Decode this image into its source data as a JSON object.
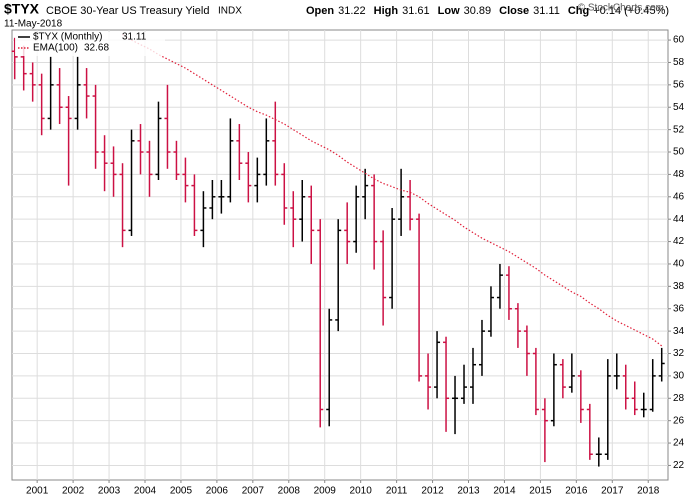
{
  "chart_data": {
    "type": "ohlc",
    "title": "$TYX",
    "subtitle": "CBOE 30-Year US Treasury Yield",
    "exchange": "INDX",
    "date": "11-May-2018",
    "quote": [
      {
        "label": "Open",
        "value": "31.22"
      },
      {
        "label": "High",
        "value": "31.61"
      },
      {
        "label": "Low",
        "value": "30.89"
      },
      {
        "label": "Close",
        "value": "31.11"
      },
      {
        "label": "Chg",
        "value": "+0.14 (+0.45%)"
      }
    ],
    "watermark": "© StockCharts.com",
    "up_color": "#000000",
    "down_color": "#cc1144",
    "grid": true,
    "xlim": [
      2000.3,
      2018.55
    ],
    "xticks": [
      2001,
      2002,
      2003,
      2004,
      2005,
      2006,
      2007,
      2008,
      2009,
      2010,
      2011,
      2012,
      2013,
      2014,
      2015,
      2016,
      2017,
      2018
    ],
    "ylim": [
      20.7,
      60.9
    ],
    "yticks": [
      22,
      24,
      26,
      28,
      30,
      32,
      34,
      36,
      38,
      40,
      42,
      44,
      46,
      48,
      50,
      52,
      54,
      56,
      58,
      60
    ],
    "x": [
      2000.375,
      2000.625,
      2000.875,
      2001.125,
      2001.375,
      2001.625,
      2001.875,
      2002.125,
      2002.375,
      2002.625,
      2002.875,
      2003.125,
      2003.375,
      2003.625,
      2003.875,
      2004.125,
      2004.375,
      2004.625,
      2004.875,
      2005.125,
      2005.375,
      2005.625,
      2005.875,
      2006.125,
      2006.375,
      2006.625,
      2006.875,
      2007.125,
      2007.375,
      2007.625,
      2007.875,
      2008.125,
      2008.375,
      2008.625,
      2008.875,
      2009.125,
      2009.375,
      2009.625,
      2009.875,
      2010.125,
      2010.375,
      2010.625,
      2010.875,
      2011.125,
      2011.375,
      2011.625,
      2011.875,
      2012.125,
      2012.375,
      2012.625,
      2012.875,
      2013.125,
      2013.375,
      2013.625,
      2013.875,
      2014.125,
      2014.375,
      2014.625,
      2014.875,
      2015.125,
      2015.375,
      2015.625,
      2015.875,
      2016.125,
      2016.375,
      2016.625,
      2016.875,
      2017.125,
      2017.375,
      2017.625,
      2017.875,
      2018.125,
      2018.375
    ],
    "price": {
      "name": "$TYX (Monthly)",
      "last": "31.11",
      "open": [
        59,
        58.5,
        57,
        56,
        53,
        56,
        54,
        53,
        56,
        55,
        50,
        49,
        48,
        43,
        51,
        50,
        48,
        53,
        50,
        48,
        47,
        43,
        45,
        46,
        46,
        51,
        49,
        47,
        48,
        51,
        48,
        45,
        44,
        46,
        43,
        27,
        35,
        43,
        42,
        46,
        47,
        42,
        37,
        44,
        46,
        44,
        30,
        29,
        33,
        28,
        28,
        29,
        31,
        34,
        37,
        39,
        36,
        34,
        32,
        27,
        26,
        31,
        29,
        30,
        27,
        23,
        23,
        30,
        30,
        28,
        27,
        27,
        30
      ],
      "high": [
        60.2,
        59.5,
        58,
        57,
        58.5,
        57.5,
        55,
        58.5,
        57.5,
        56,
        51.5,
        50.5,
        49,
        52,
        52.5,
        51,
        54.5,
        56,
        51,
        49.5,
        48,
        46.5,
        47.5,
        47.5,
        53,
        52.5,
        50,
        49.5,
        53,
        54.5,
        49,
        46.5,
        47.5,
        47,
        44,
        36,
        44,
        45.5,
        47,
        48.5,
        48,
        43,
        45,
        48.5,
        47.5,
        44.5,
        32,
        34,
        33.5,
        30,
        31,
        32.5,
        35,
        38,
        40,
        39.8,
        36.5,
        34.5,
        32.5,
        28,
        32,
        31.5,
        32,
        30.5,
        27.5,
        24.5,
        31.5,
        32,
        31,
        29.5,
        28.5,
        31.5,
        32.5
      ],
      "low": [
        56.5,
        55.5,
        54.5,
        51.5,
        52,
        52.5,
        47,
        52,
        53,
        48.5,
        46.5,
        46,
        41.5,
        42.5,
        48,
        46,
        47.5,
        48.5,
        47.5,
        45.5,
        42.5,
        41.5,
        44,
        44.5,
        45.5,
        47.5,
        45.5,
        45.5,
        47,
        47,
        43.5,
        41.5,
        42,
        40,
        25.4,
        25.5,
        34,
        40,
        41,
        44,
        39.5,
        34.5,
        36,
        42.5,
        43,
        29.5,
        27,
        28,
        25,
        24.8,
        27.5,
        27.5,
        30,
        33.5,
        36,
        35,
        32.5,
        30,
        26.5,
        22.3,
        25.5,
        28,
        28.5,
        25.8,
        22.5,
        21.9,
        22.5,
        28.8,
        27,
        26.5,
        26.3,
        26.8,
        29.5
      ],
      "close": [
        58.5,
        57,
        56,
        53,
        56,
        54,
        53,
        56,
        55,
        50,
        49,
        48,
        43,
        51,
        50,
        48,
        53,
        50,
        48,
        47,
        43,
        45,
        46,
        46,
        51,
        49,
        47,
        48,
        51,
        48,
        45,
        44,
        46,
        43,
        27,
        35,
        43,
        42,
        46,
        47,
        42,
        37,
        44,
        46,
        44,
        30,
        29,
        33,
        28,
        28,
        29,
        31,
        34,
        37,
        39,
        36,
        34,
        32,
        27,
        26,
        31,
        29,
        30,
        27,
        23,
        23,
        30,
        30,
        28,
        27,
        27,
        30,
        31.11
      ]
    },
    "ema": {
      "name": "EMA(100)",
      "last": "32.68",
      "color": "#e0203a",
      "values": [
        null,
        null,
        null,
        null,
        null,
        null,
        null,
        null,
        null,
        null,
        null,
        null,
        60.5,
        60,
        59.6,
        59.2,
        58.7,
        58.3,
        57.9,
        57.5,
        57,
        56.5,
        56,
        55.5,
        55,
        54.5,
        54,
        53.6,
        53.3,
        52.9,
        52.5,
        52,
        51.5,
        51,
        50.6,
        50.2,
        49.7,
        49.1,
        48.6,
        48.1,
        47.6,
        47.2,
        46.9,
        46.6,
        46.4,
        46,
        45.4,
        44.9,
        44.4,
        43.9,
        43.3,
        42.8,
        42.3,
        41.9,
        41.5,
        41.1,
        40.6,
        40.1,
        39.6,
        39,
        38.5,
        38,
        37.5,
        37.1,
        36.5,
        36,
        35.4,
        34.9,
        34.5,
        34.1,
        33.7,
        33.3,
        32.68
      ]
    }
  }
}
